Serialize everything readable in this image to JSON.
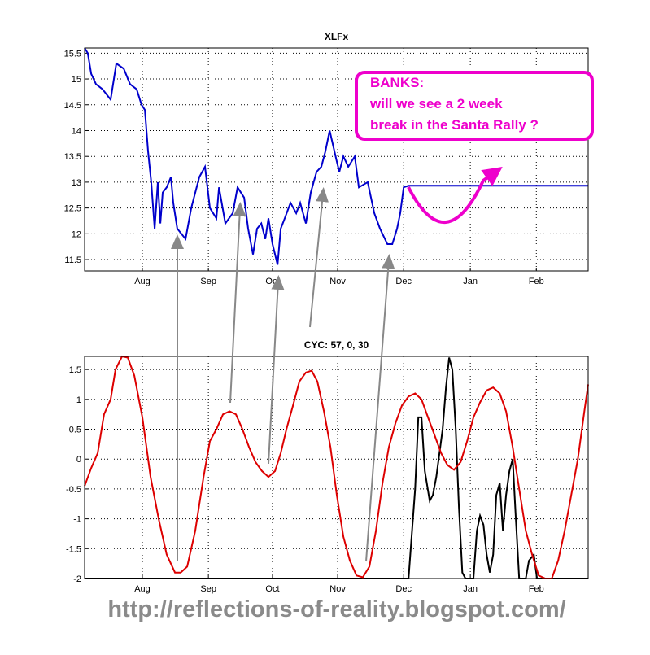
{
  "chart_data": [
    {
      "type": "line",
      "title": "XLFx",
      "xlim": [
        0,
        238
      ],
      "ylim": [
        11.28,
        15.6
      ],
      "xticks": [
        {
          "value": 27.3,
          "label": "Aug"
        },
        {
          "value": 58.5,
          "label": "Sep"
        },
        {
          "value": 88.8,
          "label": "Oct"
        },
        {
          "value": 119.6,
          "label": "Nov"
        },
        {
          "value": 150.8,
          "label": "Dec"
        },
        {
          "value": 182.3,
          "label": "Jan"
        },
        {
          "value": 213.5,
          "label": "Feb"
        }
      ],
      "yticks": [
        11.5,
        12,
        12.5,
        13,
        13.5,
        14,
        14.5,
        15,
        15.5
      ],
      "grid": true,
      "series": [
        {
          "color": "#0000cc",
          "x": [
            0,
            1.5,
            3.1,
            5.4,
            8.5,
            12.3,
            15,
            18.5,
            21.5,
            24.6,
            26.9,
            28.5,
            30,
            31.5,
            33.1,
            34.6,
            35.8,
            36.9,
            38.8,
            40.8,
            41.9,
            43.8,
            47.7,
            50.4,
            54.2,
            56.9,
            59.2,
            62.3,
            63.5,
            66.5,
            70,
            72.3,
            75.4,
            77.3,
            79.6,
            81.5,
            83.5,
            85.4,
            86.9,
            88.8,
            91.2,
            92.7,
            94.6,
            97.3,
            100,
            101.9,
            104.6,
            106.9,
            109.6,
            111.9,
            113.8,
            115.8,
            119.2,
            120.4,
            122.3,
            124.6,
            127.7,
            129.6,
            133.8,
            136.9,
            139.6,
            143.1,
            145.4,
            147.7,
            149.2,
            150.8,
            153.1,
            238
          ],
          "values": [
            15.6,
            15.5,
            15.1,
            14.9,
            14.8,
            14.6,
            15.3,
            15.2,
            14.9,
            14.8,
            14.5,
            14.4,
            13.6,
            13.0,
            12.1,
            13.0,
            12.2,
            12.8,
            12.9,
            13.1,
            12.6,
            12.1,
            11.9,
            12.5,
            13.1,
            13.3,
            12.5,
            12.3,
            12.9,
            12.2,
            12.4,
            12.9,
            12.7,
            12.1,
            11.6,
            12.1,
            12.2,
            11.9,
            12.3,
            11.8,
            11.4,
            12.1,
            12.3,
            12.6,
            12.4,
            12.6,
            12.2,
            12.8,
            13.2,
            13.3,
            13.6,
            14.0,
            13.4,
            13.2,
            13.5,
            13.3,
            13.5,
            12.9,
            13.0,
            12.4,
            12.1,
            11.8,
            11.8,
            12.1,
            12.4,
            12.9,
            12.93,
            12.93
          ]
        }
      ],
      "annotations": [
        "BANKS:",
        "will we see a 2 week",
        "break in the Santa Rally ?"
      ]
    },
    {
      "type": "line",
      "title": "CYC: 57, 0, 30",
      "xlim": [
        0,
        238
      ],
      "ylim": [
        -2,
        1.72
      ],
      "xticks": [
        {
          "value": 27.3,
          "label": "Aug"
        },
        {
          "value": 58.5,
          "label": "Sep"
        },
        {
          "value": 88.8,
          "label": "Oct"
        },
        {
          "value": 119.6,
          "label": "Nov"
        },
        {
          "value": 150.8,
          "label": "Dec"
        },
        {
          "value": 182.3,
          "label": "Jan"
        },
        {
          "value": 213.5,
          "label": "Feb"
        }
      ],
      "yticks": [
        -2,
        -1.5,
        -1,
        -0.5,
        0,
        0.5,
        1,
        1.5
      ],
      "grid": true,
      "series": [
        {
          "color": "#000000",
          "x": [
            0,
            153.1,
            156.2,
            157.7,
            159.2,
            160.8,
            163.1,
            164.6,
            166.2,
            167.7,
            169.2,
            170.8,
            172.3,
            173.8,
            175.4,
            176.9,
            178.5,
            180,
            183.8,
            185.4,
            186.9,
            188.5,
            190,
            191.5,
            193.1,
            194.6,
            196.2,
            197.7,
            199.2,
            200.8,
            202.3,
            203.8,
            205.4,
            208.5,
            210,
            212.3,
            213.8,
            215.4,
            238
          ],
          "values": [
            -2,
            -2,
            -0.5,
            0.7,
            0.7,
            -0.2,
            -0.7,
            -0.6,
            -0.3,
            0.1,
            0.5,
            1.2,
            1.7,
            1.5,
            0.5,
            -0.8,
            -1.9,
            -2,
            -2,
            -1.2,
            -0.95,
            -1.1,
            -1.6,
            -1.9,
            -1.6,
            -0.6,
            -0.4,
            -1.2,
            -0.6,
            -0.2,
            0,
            -1,
            -2,
            -2,
            -1.7,
            -1.6,
            -2,
            -2,
            -2
          ]
        },
        {
          "color": "#dd0000",
          "x": [
            0,
            3.1,
            6.2,
            9.2,
            12.3,
            14.6,
            17.7,
            20.4,
            23.5,
            27.3,
            31.2,
            35,
            38.8,
            42.7,
            45.4,
            48.5,
            52.3,
            56.2,
            59.2,
            62.3,
            65.4,
            68.5,
            71.5,
            74.6,
            77.7,
            80.8,
            83.8,
            86.9,
            90,
            92.7,
            95.4,
            98.5,
            101.5,
            104.6,
            107.3,
            110,
            113.1,
            116.2,
            119.2,
            122.3,
            125.4,
            128.5,
            131.5,
            134.6,
            137.7,
            140.8,
            143.8,
            146.9,
            150,
            153.1,
            156.2,
            159.2,
            162.3,
            165.4,
            168.5,
            171.5,
            174.6,
            177.7,
            180.8,
            183.8,
            186.9,
            190,
            193.1,
            196.2,
            199.2,
            202.3,
            205.4,
            208.5,
            211.5,
            214.6,
            217.7,
            220.8,
            223.8,
            226.9,
            230,
            233.1,
            236.2,
            238
          ],
          "values": [
            -0.45,
            -0.15,
            0.1,
            0.75,
            1.0,
            1.5,
            1.72,
            1.7,
            1.4,
            0.7,
            -0.3,
            -1.0,
            -1.6,
            -1.9,
            -1.9,
            -1.8,
            -1.2,
            -0.3,
            0.3,
            0.5,
            0.75,
            0.8,
            0.75,
            0.5,
            0.2,
            -0.05,
            -0.2,
            -0.3,
            -0.2,
            0.1,
            0.5,
            0.9,
            1.3,
            1.45,
            1.48,
            1.3,
            0.8,
            0.2,
            -0.6,
            -1.3,
            -1.7,
            -1.95,
            -1.98,
            -1.8,
            -1.2,
            -0.4,
            0.2,
            0.6,
            0.9,
            1.05,
            1.1,
            1.0,
            0.7,
            0.4,
            0.1,
            -0.1,
            -0.18,
            -0.05,
            0.3,
            0.7,
            0.95,
            1.15,
            1.2,
            1.1,
            0.8,
            0.2,
            -0.5,
            -1.2,
            -1.6,
            -1.95,
            -2.0,
            -2.0,
            -1.7,
            -1.2,
            -0.6,
            0.0,
            0.8,
            1.25
          ]
        }
      ]
    }
  ],
  "watermark": "http://reflections-of-reality.blogspot.com/"
}
